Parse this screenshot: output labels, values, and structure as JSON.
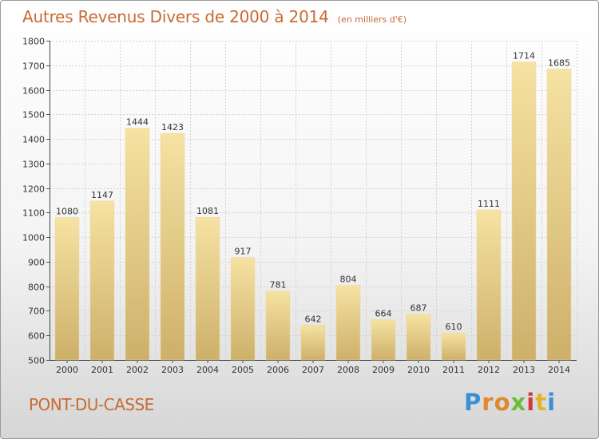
{
  "header": {
    "title": "Autres Revenus Divers de 2000 à 2014",
    "subtitle": "(en milliers d'€)"
  },
  "footer": {
    "commune": "PONT-DU-CASSE",
    "logo_letters": [
      "P",
      "r",
      "o",
      "x",
      "i",
      "t",
      "i"
    ],
    "logo_colors": [
      "#3a8fd6",
      "#e0882c",
      "#e0882c",
      "#6abf3a",
      "#d03a3a",
      "#e0b32c",
      "#3a8fd6"
    ]
  },
  "chart_data": {
    "type": "bar",
    "title": "Autres Revenus Divers de 2000 à 2014",
    "xlabel": "",
    "ylabel": "",
    "categories": [
      "2000",
      "2001",
      "2002",
      "2003",
      "2004",
      "2005",
      "2006",
      "2007",
      "2008",
      "2009",
      "2010",
      "2011",
      "2012",
      "2013",
      "2014"
    ],
    "values": [
      1080,
      1147,
      1444,
      1423,
      1081,
      917,
      781,
      642,
      804,
      664,
      687,
      610,
      1111,
      1714,
      1685
    ],
    "ylim": [
      500,
      1800
    ],
    "yticks": [
      500,
      600,
      700,
      800,
      900,
      1000,
      1100,
      1200,
      1300,
      1400,
      1500,
      1600,
      1700,
      1800
    ],
    "grid": true,
    "bar_color_top": "#f6e2a2",
    "bar_color_bottom": "#cdb06a",
    "label_color": "#333333"
  }
}
